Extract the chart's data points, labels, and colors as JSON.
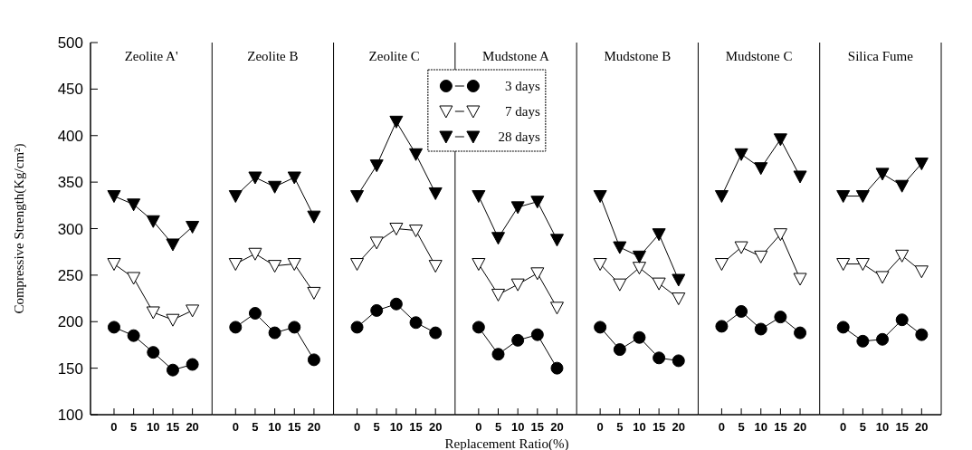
{
  "chart_data": [
    {
      "type": "line",
      "title": "Zeolite A'",
      "ylabel": "Compressive Strength(Kg/cm²)",
      "x": [
        0,
        5,
        10,
        15,
        20
      ],
      "xlim": [
        -6,
        25
      ],
      "xticks": [
        0,
        5,
        10,
        15,
        20
      ],
      "ylim": [
        100,
        500
      ],
      "yticks": [
        100,
        150,
        200,
        250,
        300,
        350,
        400,
        450,
        500
      ],
      "series": [
        {
          "color": "#000000",
          "marker": "circle",
          "values": [
            194,
            185,
            167,
            148,
            154
          ]
        },
        {
          "color": "#ffffff",
          "marker": "triangle",
          "values": [
            262,
            247,
            210,
            202,
            212
          ]
        },
        {
          "color": "#000000",
          "marker": "triangle",
          "values": [
            335,
            326,
            308,
            283,
            302
          ]
        }
      ]
    },
    {
      "type": "line",
      "title": "Zeolite B",
      "x": [
        0,
        5,
        10,
        15,
        20
      ],
      "xlim": [
        -6,
        25
      ],
      "xticks": [
        0,
        5,
        10,
        15,
        20
      ],
      "ylim": [
        100,
        500
      ],
      "tick_labels": "x",
      "series": [
        {
          "color": "#000000",
          "marker": "circle",
          "values": [
            194,
            209,
            188,
            194,
            159
          ]
        },
        {
          "color": "#ffffff",
          "marker": "triangle",
          "values": [
            262,
            273,
            260,
            262,
            231
          ]
        },
        {
          "color": "#000000",
          "marker": "triangle",
          "values": [
            335,
            355,
            345,
            355,
            313
          ]
        }
      ]
    },
    {
      "type": "line",
      "title": "Zeolite C",
      "x": [
        0,
        5,
        10,
        15,
        20
      ],
      "xlim": [
        -6,
        25
      ],
      "xticks": [
        0,
        5,
        10,
        15,
        20
      ],
      "ylim": [
        100,
        500
      ],
      "tick_labels": "x",
      "series": [
        {
          "color": "#000000",
          "marker": "circle",
          "values": [
            194,
            212,
            219,
            199,
            188
          ]
        },
        {
          "color": "#ffffff",
          "marker": "triangle",
          "values": [
            262,
            285,
            300,
            298,
            260
          ]
        },
        {
          "color": "#000000",
          "marker": "triangle",
          "values": [
            335,
            368,
            415,
            380,
            338
          ]
        }
      ]
    },
    {
      "type": "line",
      "title": "Mudstone A",
      "xlabel": "Replacement Ratio(%)",
      "legend": "top left",
      "x": [
        0,
        5,
        10,
        15,
        20
      ],
      "xlim": [
        -6,
        25
      ],
      "xticks": [
        0,
        5,
        10,
        15,
        20
      ],
      "ylim": [
        100,
        500
      ],
      "tick_labels": "x",
      "series": [
        {
          "name": "3 days",
          "color": "#000000",
          "marker": "circle",
          "values": [
            194,
            165,
            180,
            186,
            150
          ]
        },
        {
          "name": "7 days",
          "color": "#ffffff",
          "marker": "triangle",
          "values": [
            262,
            229,
            240,
            252,
            215
          ]
        },
        {
          "name": "28 days",
          "color": "#000000",
          "marker": "triangle",
          "values": [
            335,
            290,
            323,
            329,
            288
          ]
        }
      ]
    },
    {
      "type": "line",
      "title": "Mudstone B",
      "x": [
        0,
        5,
        10,
        15,
        20
      ],
      "xlim": [
        -6,
        25
      ],
      "xticks": [
        0,
        5,
        10,
        15,
        20
      ],
      "ylim": [
        100,
        500
      ],
      "tick_labels": "x",
      "series": [
        {
          "color": "#000000",
          "marker": "circle",
          "values": [
            194,
            170,
            183,
            161,
            158
          ]
        },
        {
          "color": "#ffffff",
          "marker": "triangle",
          "values": [
            262,
            240,
            258,
            241,
            225
          ]
        },
        {
          "color": "#000000",
          "marker": "triangle",
          "values": [
            335,
            280,
            270,
            294,
            245
          ]
        }
      ]
    },
    {
      "type": "line",
      "title": "Mudstone C",
      "x": [
        0,
        5,
        10,
        15,
        20
      ],
      "xlim": [
        -6,
        25
      ],
      "xticks": [
        0,
        5,
        10,
        15,
        20
      ],
      "ylim": [
        100,
        500
      ],
      "tick_labels": "x",
      "series": [
        {
          "color": "#000000",
          "marker": "circle",
          "values": [
            195,
            211,
            192,
            205,
            188
          ]
        },
        {
          "color": "#ffffff",
          "marker": "triangle",
          "values": [
            262,
            280,
            270,
            294,
            246
          ]
        },
        {
          "color": "#000000",
          "marker": "triangle",
          "values": [
            335,
            380,
            365,
            396,
            356
          ]
        }
      ]
    },
    {
      "type": "line",
      "title": "Silica Fume",
      "x": [
        0,
        5,
        10,
        15,
        20
      ],
      "xlim": [
        -6,
        25
      ],
      "xticks": [
        0,
        5,
        10,
        15,
        20
      ],
      "ylim": [
        100,
        500
      ],
      "tick_labels": "x",
      "series": [
        {
          "color": "#000000",
          "marker": "circle",
          "values": [
            194,
            179,
            181,
            202,
            186
          ]
        },
        {
          "color": "#ffffff",
          "marker": "triangle",
          "values": [
            262,
            262,
            248,
            271,
            254
          ]
        },
        {
          "color": "#000000",
          "marker": "triangle",
          "values": [
            335,
            335,
            359,
            346,
            370
          ]
        }
      ]
    }
  ]
}
